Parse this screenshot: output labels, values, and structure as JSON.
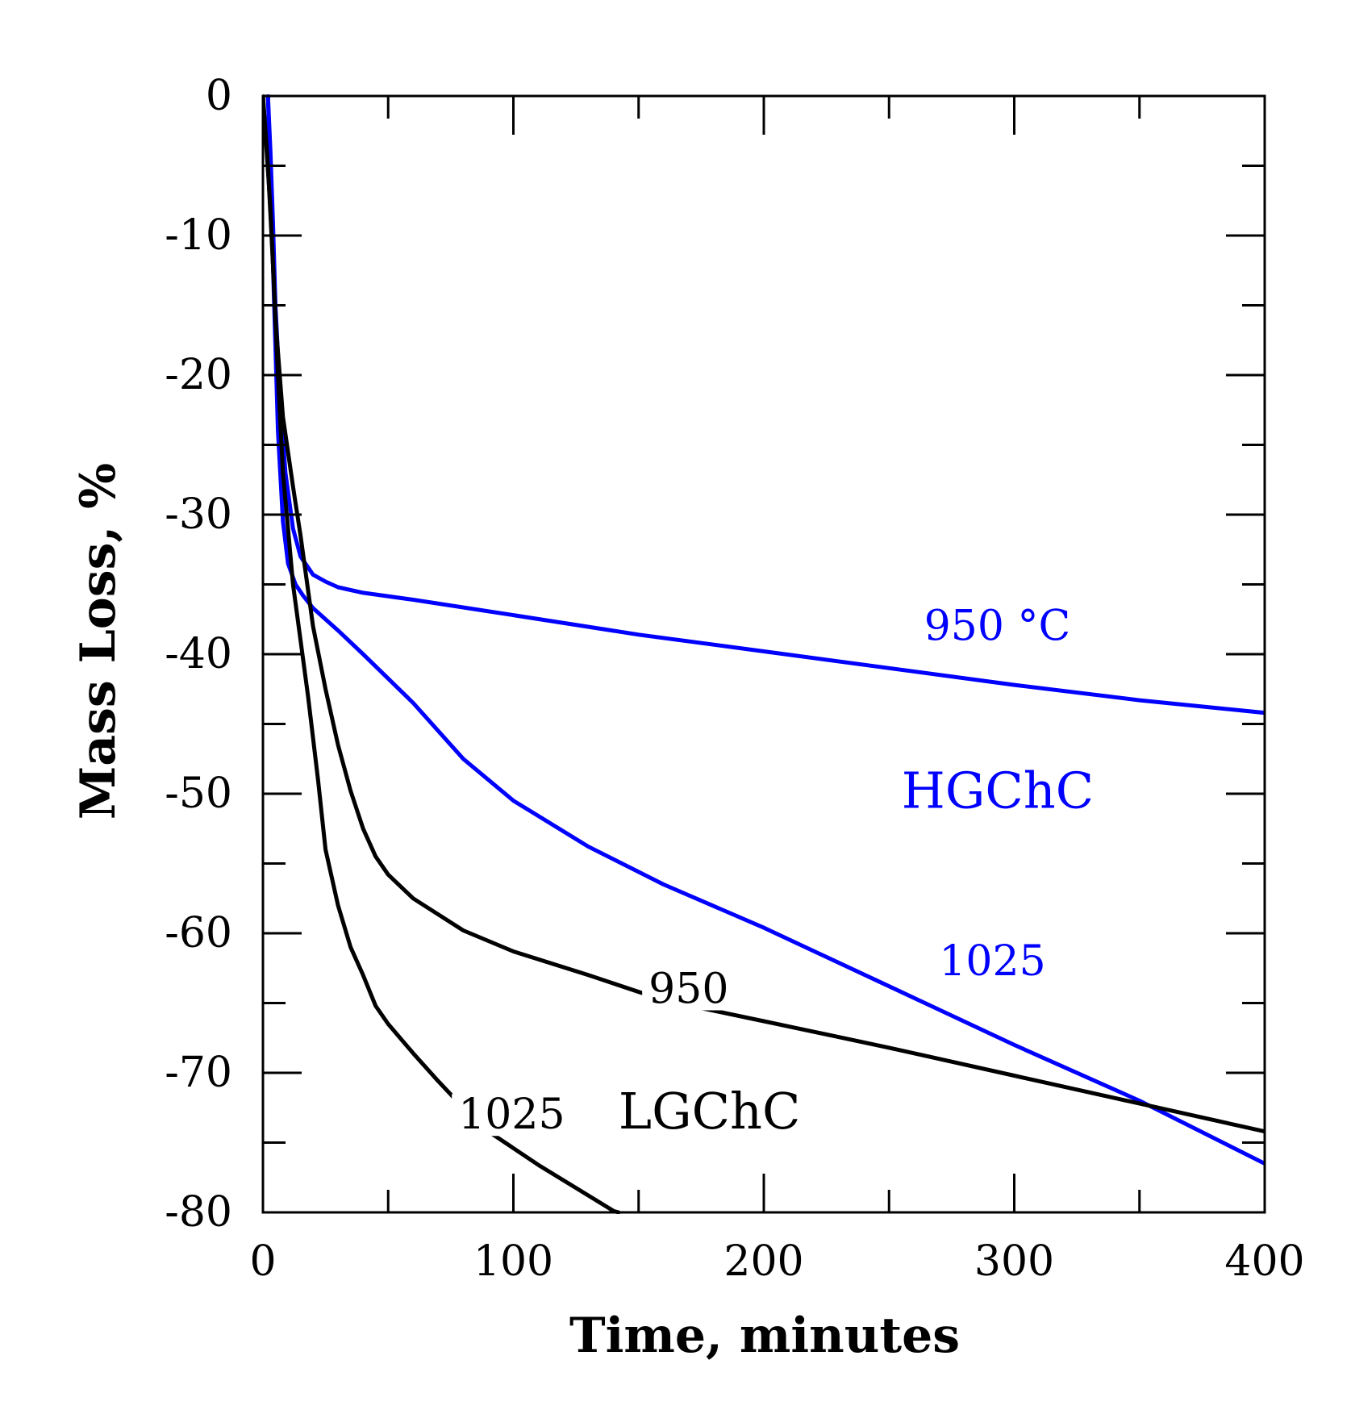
{
  "chart_data": {
    "type": "line",
    "title": "",
    "xlabel": "Time, minutes",
    "ylabel": "Mass Loss, %",
    "xlim": [
      0,
      400
    ],
    "ylim": [
      -80,
      0
    ],
    "x_ticks": [
      0,
      100,
      200,
      300,
      400
    ],
    "y_ticks": [
      0,
      -10,
      -20,
      -30,
      -40,
      -50,
      -60,
      -70,
      -80
    ],
    "grid": false,
    "colors": {
      "blue": "#0000ff",
      "black": "#000000"
    },
    "series": [
      {
        "name": "HGChC 950 °C",
        "label": "950 °C",
        "color": "#0000ff",
        "x": [
          2,
          3,
          4,
          5,
          7,
          9,
          12,
          15,
          20,
          25,
          30,
          40,
          60,
          100,
          150,
          200,
          250,
          300,
          350,
          400
        ],
        "y": [
          0,
          -4,
          -9,
          -15,
          -22,
          -27,
          -31,
          -33,
          -34.3,
          -34.8,
          -35.2,
          -35.6,
          -36.1,
          -37.2,
          -38.6,
          -39.8,
          -41,
          -42.2,
          -43.3,
          -44.2
        ]
      },
      {
        "name": "HGChC 1025",
        "label": "1025",
        "color": "#0000ff",
        "x": [
          2,
          4,
          6,
          8,
          10,
          13,
          16,
          20,
          30,
          40,
          60,
          80,
          100,
          130,
          160,
          200,
          250,
          300,
          350,
          400
        ],
        "y": [
          0,
          -12,
          -24,
          -30.5,
          -33.5,
          -35,
          -35.8,
          -36.7,
          -38.3,
          -40,
          -43.5,
          -47.5,
          -50.5,
          -53.8,
          -56.5,
          -59.6,
          -63.8,
          -68,
          -72,
          -76.5
        ]
      },
      {
        "name": "LGChC 950",
        "label": "950",
        "color": "#000000",
        "x": [
          0,
          3,
          5,
          8,
          12,
          15,
          20,
          25,
          30,
          35,
          40,
          45,
          50,
          60,
          80,
          100,
          130,
          160,
          200,
          250,
          300,
          350,
          400
        ],
        "y": [
          0,
          -8,
          -16,
          -23,
          -28,
          -31.5,
          -38,
          -42.5,
          -46.5,
          -49.8,
          -52.5,
          -54.5,
          -55.8,
          -57.5,
          -59.8,
          -61.3,
          -63,
          -64.8,
          -66.3,
          -68.2,
          -70.2,
          -72.2,
          -74.2
        ]
      },
      {
        "name": "LGChC 1025",
        "label": "1025",
        "color": "#000000",
        "x": [
          0,
          2,
          4,
          6,
          8,
          10,
          12,
          15,
          18,
          20,
          22,
          25,
          30,
          35,
          40,
          45,
          50,
          60,
          70,
          80,
          90,
          100,
          110,
          120,
          130,
          140,
          142
        ],
        "y": [
          0,
          -5,
          -12,
          -20,
          -27,
          -31,
          -35,
          -39,
          -43,
          -46,
          -49,
          -54,
          -58,
          -61,
          -63,
          -65.2,
          -66.5,
          -68.6,
          -70.6,
          -72.5,
          -74.2,
          -75.4,
          -76.6,
          -77.7,
          -78.8,
          -79.9,
          -80
        ]
      }
    ],
    "annotations": [
      {
        "text": "950 °C",
        "color": "#0000ff",
        "x": 264,
        "y": -39,
        "kind": "curve"
      },
      {
        "text": "HGChC",
        "color": "#0000ff",
        "x": 255,
        "y": -51,
        "kind": "group"
      },
      {
        "text": "1025",
        "color": "#0000ff",
        "x": 270,
        "y": -63,
        "kind": "curve"
      },
      {
        "text": "950",
        "color": "#000000",
        "x": 154,
        "y": -65,
        "kind": "curve"
      },
      {
        "text": "1025",
        "color": "#000000",
        "x": 78,
        "y": -74,
        "kind": "curve"
      },
      {
        "text": "LGChC",
        "color": "#000000",
        "x": 142,
        "y": -74,
        "kind": "group"
      }
    ]
  }
}
